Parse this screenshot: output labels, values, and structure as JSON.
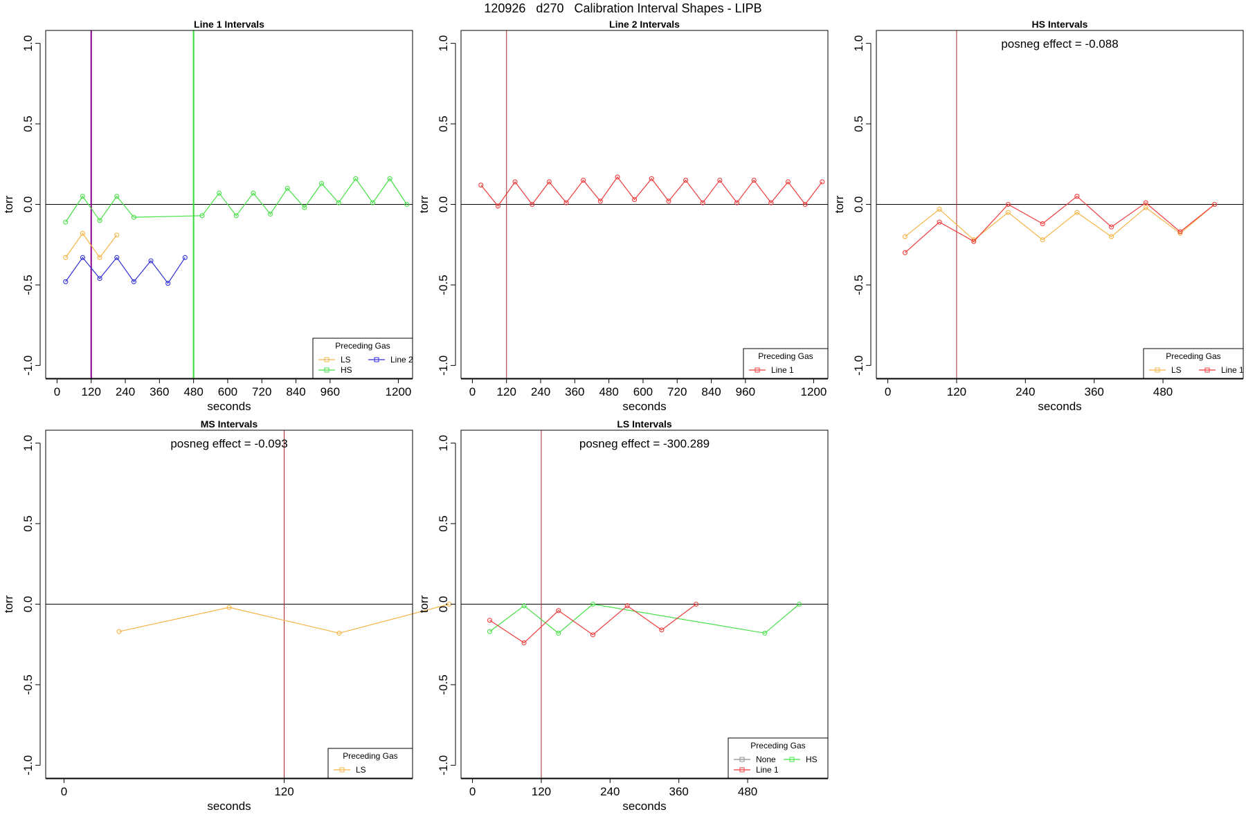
{
  "figure_title": "120926   d270   Calibration Interval Shapes - LIPB",
  "chart_data": [
    {
      "id": "line1",
      "type": "line",
      "title": "Line 1 Intervals",
      "xlabel": "seconds",
      "ylabel": "torr",
      "xlim": [
        -40,
        1250
      ],
      "ylim": [
        -1.08,
        1.08
      ],
      "xticks": [
        0,
        120,
        240,
        360,
        480,
        600,
        720,
        840,
        960,
        1200
      ],
      "yticks": [
        -1.0,
        -0.5,
        0.0,
        0.5,
        1.0
      ],
      "ytick_labels": [
        "-1.0",
        "-0.5",
        "0.0",
        "0.5",
        "1.0"
      ],
      "hlines": [
        0
      ],
      "vlines": [
        {
          "x": 120,
          "color": "#8b008b",
          "width": 2
        },
        {
          "x": 480,
          "color": "#33dd33",
          "width": 2
        }
      ],
      "legend": {
        "title": "Preceding Gas",
        "position": "bottom-right",
        "columns": 2,
        "entries": [
          {
            "label": "LS",
            "color": "#f5b445"
          },
          {
            "label": "Line 2",
            "color": "#2f2fd8"
          },
          {
            "label": "HS",
            "color": "#45e045"
          }
        ]
      },
      "annotation": "",
      "series": [
        {
          "name": "LS",
          "color": "#f5b445",
          "x": [
            30,
            90,
            150,
            210
          ],
          "y": [
            -0.33,
            -0.18,
            -0.33,
            -0.19
          ]
        },
        {
          "name": "HS",
          "color": "#45e045",
          "x": [
            30,
            90,
            150,
            210,
            270,
            510,
            570,
            630,
            690,
            750,
            810,
            870,
            930,
            990,
            1050,
            1110,
            1170,
            1230
          ],
          "y": [
            -0.11,
            0.05,
            -0.1,
            0.05,
            -0.08,
            -0.07,
            0.07,
            -0.07,
            0.07,
            -0.06,
            0.1,
            -0.02,
            0.13,
            0.01,
            0.16,
            0.01,
            0.16,
            0.0
          ]
        },
        {
          "name": "Line 2",
          "color": "#2f2fd8",
          "x": [
            30,
            90,
            150,
            210,
            270,
            330,
            390,
            450
          ],
          "y": [
            -0.48,
            -0.33,
            -0.46,
            -0.33,
            -0.48,
            -0.35,
            -0.49,
            -0.33
          ]
        }
      ]
    },
    {
      "id": "line2",
      "type": "line",
      "title": "Line 2 Intervals",
      "xlabel": "seconds",
      "ylabel": "torr",
      "xlim": [
        -40,
        1250
      ],
      "ylim": [
        -1.08,
        1.08
      ],
      "xticks": [
        0,
        120,
        240,
        360,
        480,
        600,
        720,
        840,
        960,
        1200
      ],
      "yticks": [
        -1.0,
        -0.5,
        0.0,
        0.5,
        1.0
      ],
      "ytick_labels": [
        "-1.0",
        "-0.5",
        "0.0",
        "0.5",
        "1.0"
      ],
      "hlines": [
        0
      ],
      "vlines": [
        {
          "x": 120,
          "color": "#a52a2a",
          "width": 1
        }
      ],
      "legend": {
        "title": "Preceding Gas",
        "position": "bottom-right",
        "columns": 1,
        "entries": [
          {
            "label": "Line 1",
            "color": "#ee3b3b"
          }
        ]
      },
      "annotation": "",
      "series": [
        {
          "name": "Line 1",
          "color": "#ee3b3b",
          "x": [
            30,
            90,
            150,
            210,
            270,
            330,
            390,
            450,
            510,
            570,
            630,
            690,
            750,
            810,
            870,
            930,
            990,
            1050,
            1110,
            1170,
            1230
          ],
          "y": [
            0.12,
            -0.01,
            0.14,
            0.0,
            0.14,
            0.01,
            0.15,
            0.02,
            0.17,
            0.03,
            0.16,
            0.02,
            0.15,
            0.01,
            0.15,
            0.01,
            0.15,
            0.01,
            0.14,
            0.0,
            0.14
          ]
        }
      ]
    },
    {
      "id": "hs",
      "type": "line",
      "title": "HS Intervals",
      "xlabel": "seconds",
      "ylabel": "torr",
      "xlim": [
        -20,
        620
      ],
      "ylim": [
        -1.08,
        1.08
      ],
      "xticks": [
        0,
        120,
        240,
        360,
        480
      ],
      "yticks": [
        -1.0,
        -0.5,
        0.0,
        0.5,
        1.0
      ],
      "ytick_labels": [
        "-1.0",
        "-0.5",
        "0.0",
        "0.5",
        "1.0"
      ],
      "hlines": [
        0
      ],
      "vlines": [
        {
          "x": 120,
          "color": "#a52a2a",
          "width": 1
        }
      ],
      "legend": {
        "title": "Preceding Gas",
        "position": "bottom-right",
        "columns": 2,
        "entries": [
          {
            "label": "LS",
            "color": "#f5b445"
          },
          {
            "label": "Line 1",
            "color": "#ee3b3b"
          }
        ]
      },
      "annotation": "posneg effect = -0.088",
      "series": [
        {
          "name": "LS",
          "color": "#f5b445",
          "x": [
            30,
            90,
            150,
            210,
            270,
            330,
            390,
            450,
            510,
            570
          ],
          "y": [
            -0.2,
            -0.03,
            -0.22,
            -0.05,
            -0.22,
            -0.05,
            -0.2,
            -0.02,
            -0.18,
            0.0
          ]
        },
        {
          "name": "Line 1",
          "color": "#ee3b3b",
          "x": [
            30,
            90,
            150,
            210,
            270,
            330,
            390,
            450,
            510,
            570
          ],
          "y": [
            -0.3,
            -0.11,
            -0.23,
            0.0,
            -0.12,
            0.05,
            -0.14,
            0.01,
            -0.17,
            0.0
          ]
        }
      ]
    },
    {
      "id": "ms",
      "type": "line",
      "title": "MS Intervals",
      "xlabel": "seconds",
      "ylabel": "torr",
      "xlim": [
        -10,
        190
      ],
      "ylim": [
        -1.08,
        1.08
      ],
      "xticks": [
        0,
        120
      ],
      "yticks": [
        -1.0,
        -0.5,
        0.0,
        0.5,
        1.0
      ],
      "ytick_labels": [
        "-1.0",
        "-0.5",
        "0.0",
        "0.5",
        "1.0"
      ],
      "hlines": [
        0
      ],
      "vlines": [
        {
          "x": 120,
          "color": "#a52a2a",
          "width": 1
        }
      ],
      "legend": {
        "title": "Preceding Gas",
        "position": "bottom-right",
        "columns": 1,
        "entries": [
          {
            "label": "LS",
            "color": "#f5b445"
          }
        ]
      },
      "annotation": "posneg effect = -0.093",
      "series": [
        {
          "name": "LS",
          "color": "#f5b445",
          "x": [
            30,
            90,
            150,
            210
          ],
          "y": [
            -0.17,
            -0.02,
            -0.18,
            0.0
          ]
        }
      ]
    },
    {
      "id": "ls",
      "type": "line",
      "title": "LS Intervals",
      "xlabel": "seconds",
      "ylabel": "torr",
      "xlim": [
        -20,
        620
      ],
      "ylim": [
        -1.08,
        1.08
      ],
      "xticks": [
        0,
        120,
        240,
        360,
        480
      ],
      "yticks": [
        -1.0,
        -0.5,
        0.0,
        0.5,
        1.0
      ],
      "ytick_labels": [
        "-1.0",
        "-0.5",
        "0.0",
        "0.5",
        "1.0"
      ],
      "hlines": [
        0
      ],
      "vlines": [
        {
          "x": 120,
          "color": "#a52a2a",
          "width": 1
        }
      ],
      "legend": {
        "title": "Preceding Gas",
        "position": "bottom-right",
        "columns": 2,
        "entries": [
          {
            "label": "None",
            "color": "#8c8c8c"
          },
          {
            "label": "HS",
            "color": "#45e045"
          },
          {
            "label": "Line 1",
            "color": "#ee3b3b"
          }
        ]
      },
      "annotation": "posneg effect = -300.289",
      "series": [
        {
          "name": "HS",
          "color": "#45e045",
          "x": [
            30,
            90,
            150,
            210,
            510,
            570
          ],
          "y": [
            -0.17,
            -0.01,
            -0.18,
            0.0,
            -0.18,
            0.0
          ]
        },
        {
          "name": "Line 1",
          "color": "#ee3b3b",
          "x": [
            30,
            90,
            150,
            210,
            270,
            330,
            390
          ],
          "y": [
            -0.1,
            -0.24,
            -0.04,
            -0.19,
            -0.01,
            -0.16,
            0.0
          ]
        }
      ]
    }
  ]
}
